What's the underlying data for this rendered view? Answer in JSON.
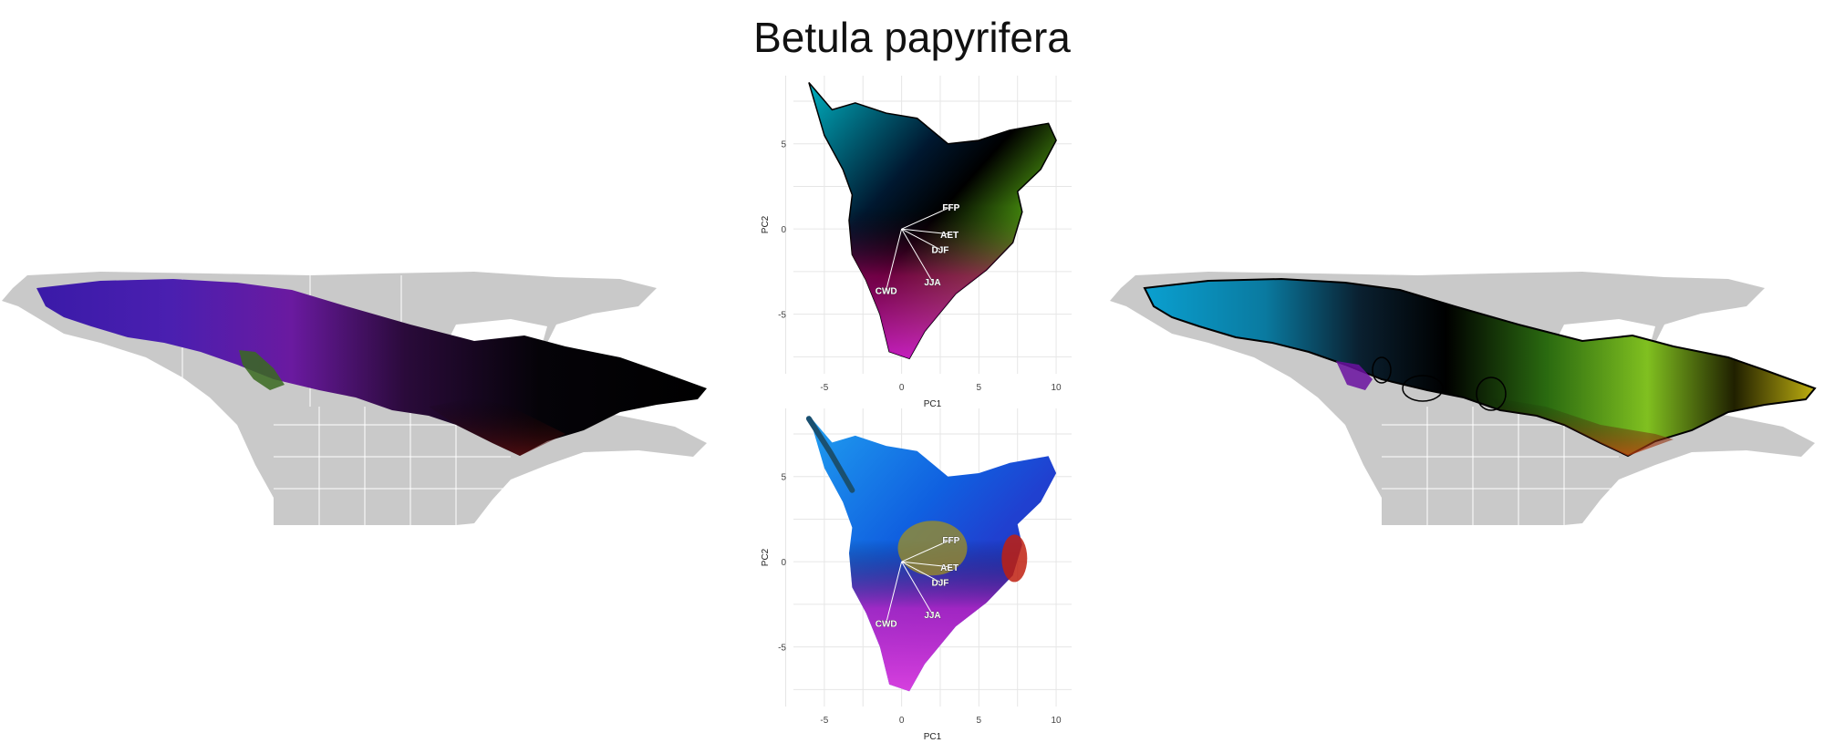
{
  "title": "Betula papyrifera",
  "chart_data": [
    {
      "type": "scatter",
      "panel": "pca-top",
      "xlabel": "PC1",
      "ylabel": "PC2",
      "x_ticks": [
        -5,
        0,
        5,
        10
      ],
      "y_ticks": [
        -5,
        0,
        5
      ],
      "xlim": [
        -7,
        11
      ],
      "ylim": [
        -8.5,
        9
      ],
      "grid": true,
      "vectors": [
        {
          "label": "FFP",
          "x": 3.2,
          "y": 1.3
        },
        {
          "label": "AET",
          "x": 3.1,
          "y": -0.3
        },
        {
          "label": "DJF",
          "x": 2.5,
          "y": -1.2
        },
        {
          "label": "JJA",
          "x": 2.0,
          "y": -3.1
        },
        {
          "label": "CWD",
          "x": -1.0,
          "y": -3.6
        }
      ]
    },
    {
      "type": "scatter",
      "panel": "pca-bottom",
      "xlabel": "PC1",
      "ylabel": "PC2",
      "x_ticks": [
        -5,
        0,
        5,
        10
      ],
      "y_ticks": [
        -5,
        0,
        5
      ],
      "xlim": [
        -7,
        11
      ],
      "ylim": [
        -8.5,
        9
      ],
      "grid": true,
      "vectors": [
        {
          "label": "FFP",
          "x": 3.2,
          "y": 1.3
        },
        {
          "label": "AET",
          "x": 3.1,
          "y": -0.3
        },
        {
          "label": "DJF",
          "x": 2.5,
          "y": -1.2
        },
        {
          "label": "JJA",
          "x": 2.0,
          "y": -3.1
        },
        {
          "label": "CWD",
          "x": -1.0,
          "y": -3.6
        }
      ]
    }
  ]
}
